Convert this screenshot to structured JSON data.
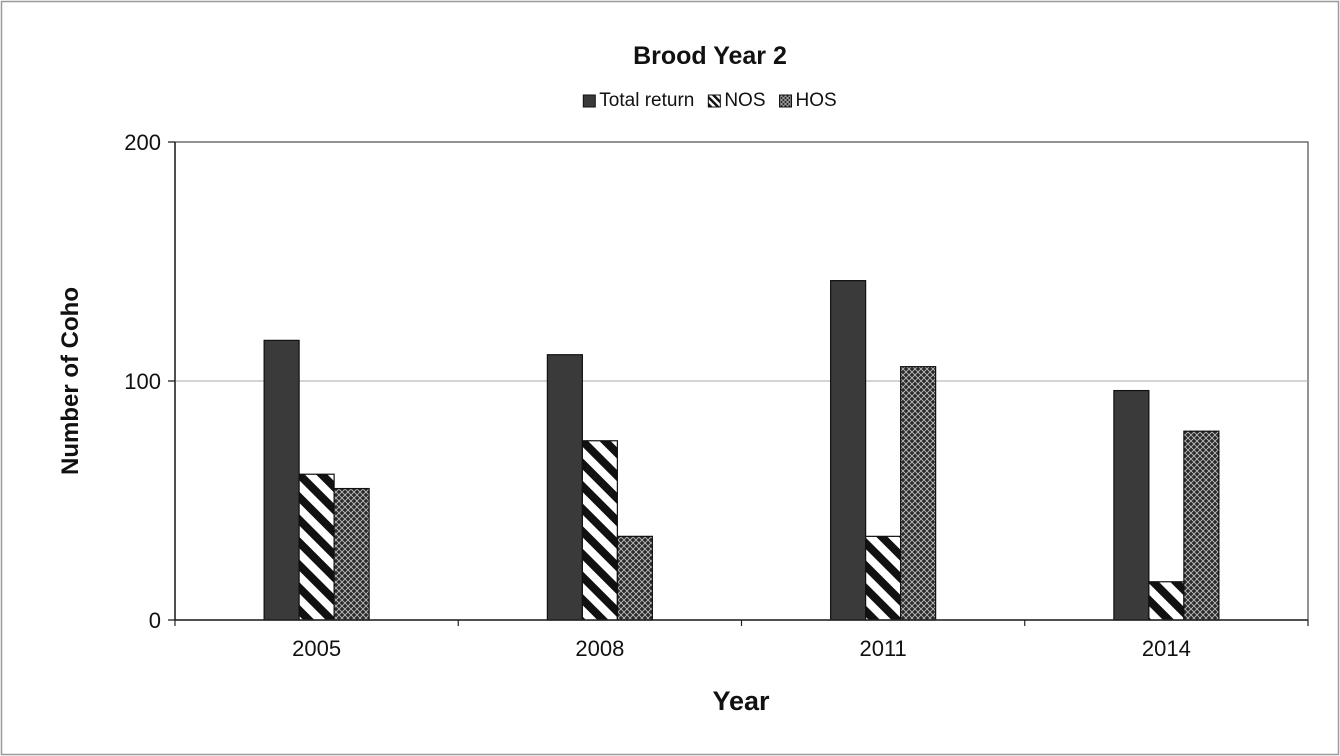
{
  "chart_data": {
    "type": "bar",
    "title": "Brood Year 2",
    "xlabel": "Year",
    "ylabel": "Number of Coho",
    "categories": [
      "2005",
      "2008",
      "2011",
      "2014"
    ],
    "series": [
      {
        "name": "Total return",
        "values": [
          117,
          111,
          142,
          96
        ],
        "pattern": "solid",
        "color": "#3a3a3a"
      },
      {
        "name": "NOS",
        "values": [
          61,
          75,
          35,
          16
        ],
        "pattern": "diagonal",
        "color": "#111111"
      },
      {
        "name": "HOS",
        "values": [
          55,
          35,
          106,
          79
        ],
        "pattern": "crosshatch",
        "color": "#2a2a2a"
      }
    ],
    "ylim": [
      0,
      200
    ],
    "yticks": [
      0,
      100,
      200
    ],
    "grid": true,
    "legend_position": "top-center"
  }
}
